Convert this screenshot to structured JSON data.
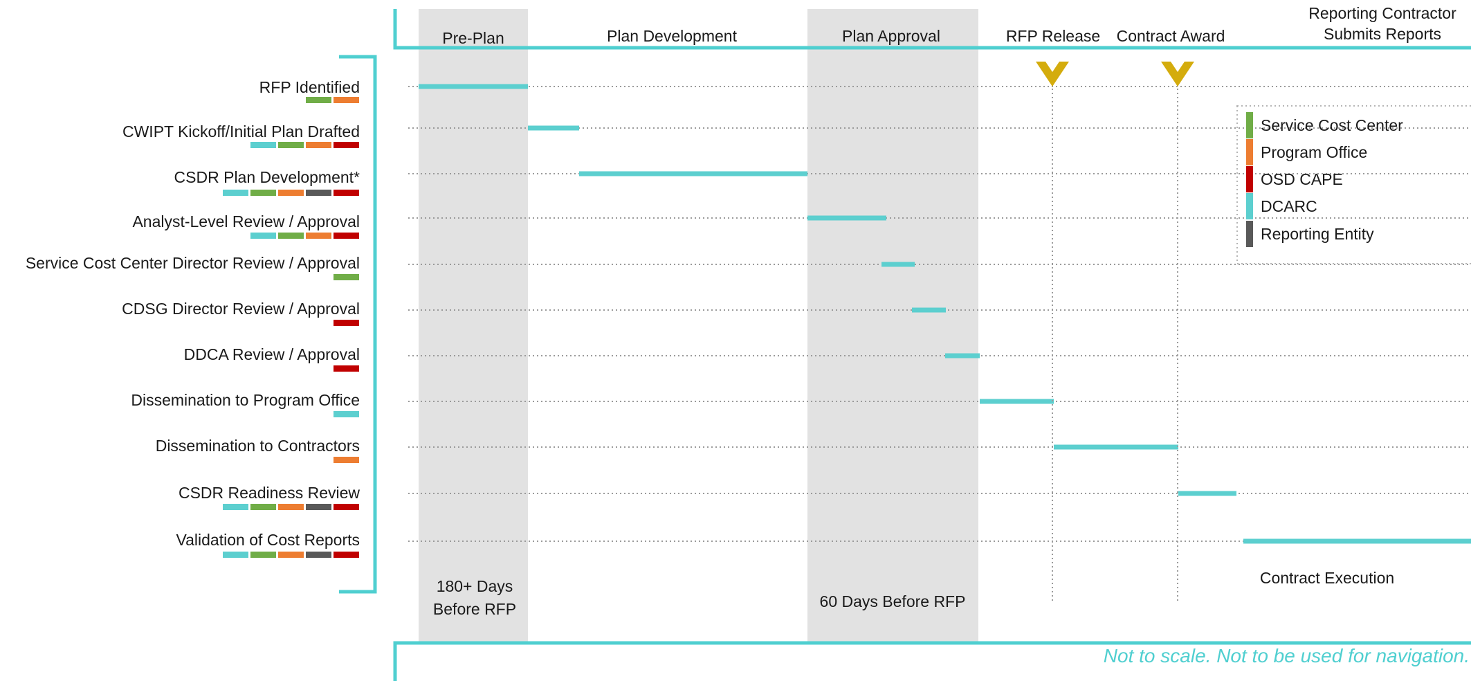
{
  "colors": {
    "accent_teal": "#4fcfd0",
    "dcarc": "#5ccfcf",
    "service_cost_center": "#70ad47",
    "program_office": "#ed7d31",
    "osd_cape": "#c00000",
    "reporting_entity": "#595959",
    "milestone_marker": "#d4ac0d",
    "phase_shading": "#e2e2e2"
  },
  "phases": [
    {
      "label": "Pre-Plan",
      "shaded": true
    },
    {
      "label": "Plan Development",
      "shaded": false
    },
    {
      "label": "Plan Approval",
      "shaded": true
    },
    {
      "label": "RFP Release",
      "shaded": false
    },
    {
      "label": "Contract Award",
      "shaded": false
    },
    {
      "label": "Reporting Contractor\nSubmits Reports",
      "shaded": false
    }
  ],
  "rows": [
    {
      "label": "RFP Identified",
      "roles": [
        "service_cost_center",
        "program_office"
      ]
    },
    {
      "label": "CWIPT Kickoff/Initial Plan Drafted",
      "roles": [
        "dcarc",
        "service_cost_center",
        "program_office",
        "osd_cape"
      ]
    },
    {
      "label": "CSDR Plan Development*",
      "roles": [
        "dcarc",
        "service_cost_center",
        "program_office",
        "reporting_entity",
        "osd_cape"
      ]
    },
    {
      "label": "Analyst-Level Review / Approval",
      "roles": [
        "dcarc",
        "service_cost_center",
        "program_office",
        "osd_cape"
      ]
    },
    {
      "label": "Service Cost Center Director Review / Approval",
      "roles": [
        "service_cost_center"
      ]
    },
    {
      "label": "CDSG Director Review / Approval",
      "roles": [
        "osd_cape"
      ]
    },
    {
      "label": "DDCA Review / Approval",
      "roles": [
        "osd_cape"
      ]
    },
    {
      "label": "Dissemination to Program Office",
      "roles": [
        "dcarc"
      ]
    },
    {
      "label": "Dissemination to Contractors",
      "roles": [
        "program_office"
      ]
    },
    {
      "label": "CSDR Readiness Review",
      "roles": [
        "dcarc",
        "service_cost_center",
        "program_office",
        "reporting_entity",
        "osd_cape"
      ]
    },
    {
      "label": "Validation of Cost Reports",
      "roles": [
        "dcarc",
        "service_cost_center",
        "program_office",
        "reporting_entity",
        "osd_cape"
      ]
    }
  ],
  "milestones": [
    {
      "label": "RFP Release"
    },
    {
      "label": "Contract Award"
    }
  ],
  "legend": [
    {
      "key": "service_cost_center",
      "label": "Service Cost Center"
    },
    {
      "key": "program_office",
      "label": "Program Office"
    },
    {
      "key": "osd_cape",
      "label": "OSD CAPE"
    },
    {
      "key": "dcarc",
      "label": "DCARC"
    },
    {
      "key": "reporting_entity",
      "label": "Reporting Entity"
    }
  ],
  "annotations": {
    "preplan_note": "180+ Days\nBefore RFP",
    "approval_note": "60 Days Before RFP",
    "execution_note": "Contract Execution"
  },
  "disclaimer": "Not to scale. Not to be used for navigation."
}
